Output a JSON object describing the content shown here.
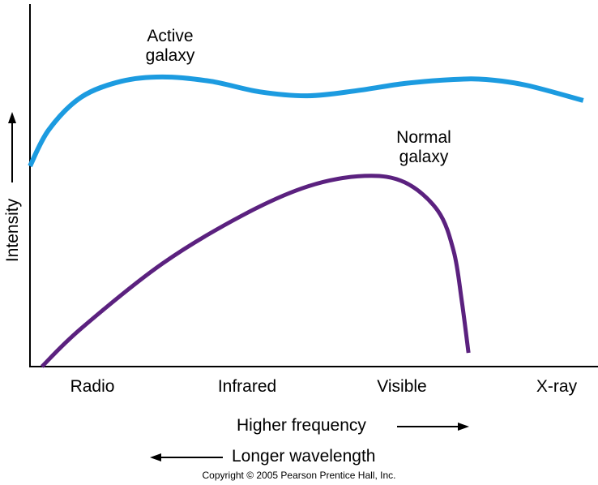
{
  "chart_data": {
    "type": "line",
    "title": "",
    "xlabel": "Higher frequency",
    "xlabel_secondary": "Longer wavelength",
    "ylabel": "Intensity",
    "xlim": [
      0,
      100
    ],
    "ylim": [
      0,
      100
    ],
    "categories": [
      "Radio",
      "Infrared",
      "Visible",
      "X-ray"
    ],
    "category_positions": [
      11,
      38,
      65.5,
      92.7
    ],
    "series": [
      {
        "name": "Active galaxy",
        "label_line1": "Active",
        "label_line2": "galaxy",
        "color": "#1c9be0",
        "x": [
          0,
          3.3,
          9,
          16.1,
          23.3,
          31.8,
          40.4,
          48.9,
          57.5,
          66,
          74.6,
          80.3,
          87.4,
          97.4
        ],
        "y": [
          55.3,
          65.3,
          74.3,
          78.7,
          79.9,
          78.7,
          75.8,
          74.7,
          76.1,
          78.1,
          79.2,
          79.2,
          77.6,
          73.4
        ]
      },
      {
        "name": "Normal galaxy",
        "label_line1": "Normal",
        "label_line2": "galaxy",
        "color": "#5b217f",
        "x": [
          2.1,
          9,
          23.3,
          37.5,
          48.9,
          58.9,
          66,
          71.8,
          74.6,
          76,
          77.2
        ],
        "y": [
          0,
          10.5,
          28.4,
          41.8,
          49.7,
          52.6,
          50.8,
          43,
          31.8,
          18.3,
          3.8
        ]
      }
    ]
  },
  "copyright": "Copyright © 2005 Pearson Prentice Hall, Inc."
}
